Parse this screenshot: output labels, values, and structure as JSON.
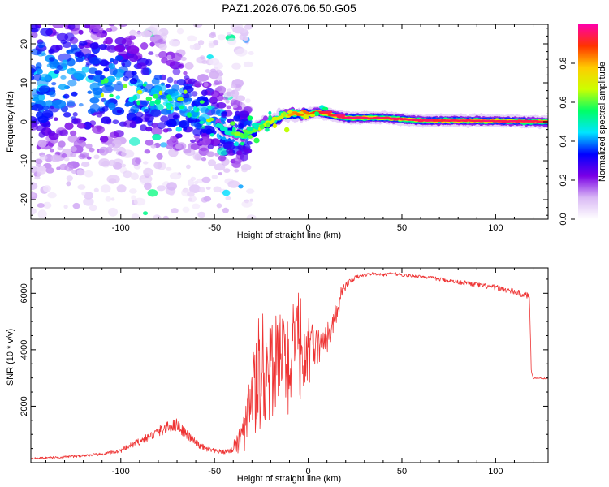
{
  "page_title": "PAZ1.2026.076.06.50.G05",
  "chart_data": [
    {
      "type": "heatmap",
      "title": "PAZ1.2026.076.06.50.G05",
      "xlabel": "Height of straight line (km)",
      "ylabel": "Frequency (Hz)",
      "xlim": [
        -148,
        128
      ],
      "ylim": [
        -25,
        25
      ],
      "xticks": [
        -100,
        -50,
        0,
        50,
        100
      ],
      "yticks": [
        -20,
        -10,
        0,
        10,
        20
      ],
      "xtick_labels": [
        "-100",
        "-50",
        "0",
        "50",
        "100"
      ],
      "ytick_labels": [
        "-20",
        "-10",
        "0",
        "10",
        "20"
      ],
      "grid": false,
      "ridge": {
        "description": "dominant frequency ridge",
        "x": [
          -148,
          -120,
          -100,
          -90,
          -80,
          -70,
          -60,
          -50,
          -45,
          -40,
          -35,
          -30,
          -25,
          -20,
          -15,
          -10,
          -5,
          0,
          5,
          10,
          20,
          40,
          60,
          80,
          100,
          128
        ],
        "y": [
          12,
          10,
          9,
          8,
          6,
          5,
          3,
          0,
          -2,
          -3,
          -3.5,
          -2.5,
          -1,
          0,
          1.5,
          2,
          2,
          2,
          2.5,
          2,
          1,
          1,
          0.3,
          0.3,
          0.2,
          0
        ],
        "amplitude": [
          0.15,
          0.2,
          0.3,
          0.35,
          0.4,
          0.45,
          0.5,
          0.5,
          0.55,
          0.6,
          0.6,
          0.6,
          0.65,
          0.7,
          0.75,
          0.8,
          0.85,
          0.85,
          0.9,
          0.9,
          0.95,
          0.95,
          0.95,
          0.95,
          0.95,
          0.95
        ]
      },
      "noise_region_x": [
        -148,
        -40
      ],
      "colorbar": {
        "label": "Normalized spectral amplitude",
        "range": [
          0.0,
          1.0
        ],
        "ticks": [
          0.0,
          0.2,
          0.4,
          0.6,
          0.8
        ],
        "tick_labels": [
          "0.0",
          "0.2",
          "0.4",
          "0.6",
          "0.8"
        ],
        "colors": [
          "#ffffff",
          "#d9b8f5",
          "#7a00e6",
          "#0000ff",
          "#00e5ff",
          "#00ff66",
          "#ccff00",
          "#ffcc00",
          "#ff3300",
          "#ff00aa"
        ]
      }
    },
    {
      "type": "line",
      "xlabel": "Height of straight line (km)",
      "ylabel": "SNR (10 * v/v)",
      "xlim": [
        -148,
        128
      ],
      "ylim": [
        0,
        6900
      ],
      "xticks": [
        -100,
        -50,
        0,
        50,
        100
      ],
      "yticks": [
        2000,
        4000,
        6000
      ],
      "xtick_labels": [
        "-100",
        "-50",
        "0",
        "50",
        "100"
      ],
      "ytick_labels": [
        "2000",
        "4000",
        "6000"
      ],
      "grid": false,
      "color": "#ee3333",
      "series": [
        {
          "name": "SNR",
          "x": [
            -148,
            -130,
            -110,
            -100,
            -95,
            -90,
            -85,
            -80,
            -75,
            -70,
            -65,
            -60,
            -55,
            -50,
            -45,
            -40,
            -35,
            -30,
            -27,
            -24,
            -21,
            -18,
            -15,
            -12,
            -9,
            -6,
            -3,
            0,
            3,
            6,
            9,
            12,
            15,
            18,
            20,
            25,
            30,
            35,
            40,
            45,
            50,
            60,
            70,
            80,
            90,
            100,
            110,
            115,
            118,
            119,
            120,
            124,
            128
          ],
          "y": [
            150,
            200,
            300,
            420,
            600,
            750,
            900,
            1100,
            1250,
            1350,
            1000,
            700,
            500,
            400,
            380,
            450,
            900,
            2100,
            2800,
            3100,
            3300,
            3400,
            3600,
            3500,
            3700,
            3850,
            3800,
            3900,
            4000,
            4150,
            4300,
            4700,
            5300,
            6000,
            6300,
            6550,
            6650,
            6700,
            6650,
            6700,
            6650,
            6600,
            6500,
            6400,
            6300,
            6200,
            6050,
            5950,
            5900,
            3300,
            3000,
            2990,
            2980
          ],
          "noise": [
            60,
            80,
            100,
            140,
            200,
            260,
            320,
            380,
            420,
            480,
            380,
            280,
            220,
            180,
            160,
            200,
            600,
            1400,
            1700,
            1800,
            1900,
            1800,
            1800,
            1900,
            2000,
            1800,
            1400,
            1100,
            800,
            600,
            500,
            450,
            400,
            250,
            200,
            150,
            120,
            100,
            100,
            100,
            110,
            120,
            140,
            160,
            180,
            200,
            220,
            220,
            220,
            80,
            60,
            60,
            60
          ]
        }
      ],
      "annotations": []
    }
  ]
}
